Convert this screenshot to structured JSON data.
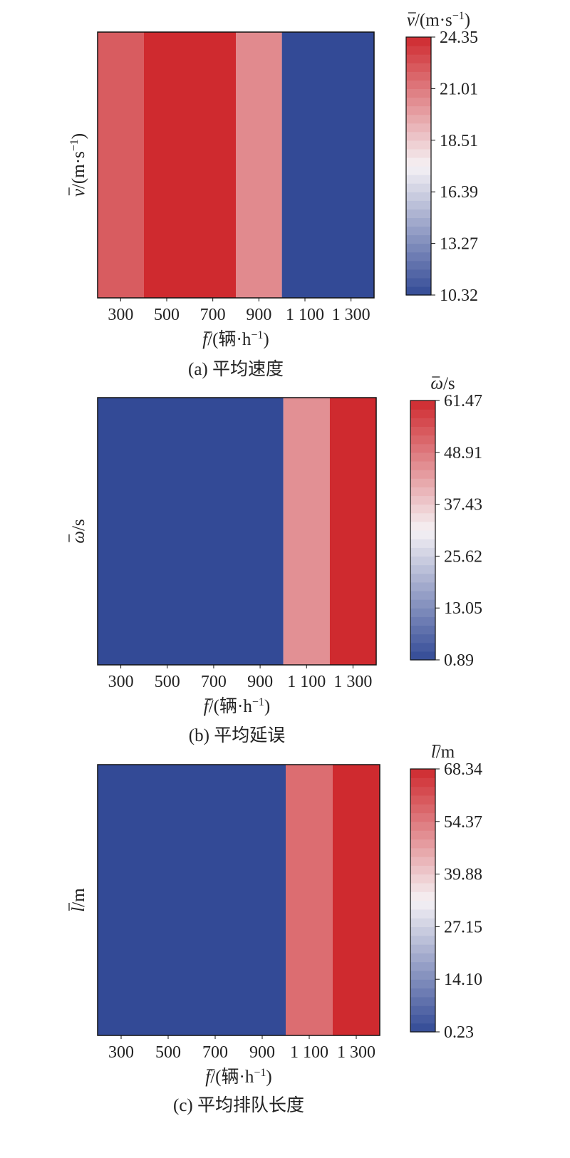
{
  "chart_data": [
    {
      "type": "heatmap",
      "panel_label": "(a) 平均速度",
      "xlabel": {
        "sym": "f",
        "unit": "/(辆·h",
        "exp": "−1",
        "close": ")"
      },
      "ylabel": {
        "sym": "v",
        "unit": "/(m·s",
        "exp": "−1",
        "close": ")"
      },
      "colorbar_title": {
        "sym": "v",
        "unit": "/(m·s",
        "exp": "−1",
        "close": ")"
      },
      "x_ticks": [
        "300",
        "500",
        "700",
        "900",
        "1 100",
        "1 300"
      ],
      "x_range": [
        200,
        1400
      ],
      "colorbar_ticks": [
        "24.35",
        "21.01",
        "18.51",
        "16.39",
        "13.27",
        "10.32"
      ],
      "value_range": [
        10.32,
        24.35
      ],
      "cells": [
        {
          "x_start": 200,
          "x_end": 400,
          "value": 22.6
        },
        {
          "x_start": 400,
          "x_end": 800,
          "value": 24.35
        },
        {
          "x_start": 800,
          "x_end": 1000,
          "value": 21.0
        },
        {
          "x_start": 1000,
          "x_end": 1400,
          "value": 10.32
        }
      ]
    },
    {
      "type": "heatmap",
      "panel_label": "(b) 平均延误",
      "xlabel": {
        "sym": "f",
        "unit": "/(辆·h",
        "exp": "−1",
        "close": ")"
      },
      "ylabel": {
        "sym": "ω",
        "unit": "/s",
        "exp": "",
        "close": ""
      },
      "colorbar_title": {
        "sym": "ω",
        "unit": "/s",
        "exp": "",
        "close": ""
      },
      "x_ticks": [
        "300",
        "500",
        "700",
        "900",
        "1 100",
        "1 300"
      ],
      "x_range": [
        200,
        1400
      ],
      "colorbar_ticks": [
        "61.47",
        "48.91",
        "37.43",
        "25.62",
        "13.05",
        "0.89"
      ],
      "value_range": [
        0.89,
        61.47
      ],
      "cells": [
        {
          "x_start": 200,
          "x_end": 1000,
          "value": 0.89
        },
        {
          "x_start": 1000,
          "x_end": 1200,
          "value": 46.0
        },
        {
          "x_start": 1200,
          "x_end": 1400,
          "value": 61.47
        }
      ]
    },
    {
      "type": "heatmap",
      "panel_label": "(c) 平均排队长度",
      "xlabel": {
        "sym": "f",
        "unit": "/(辆·h",
        "exp": "−1",
        "close": ")"
      },
      "ylabel": {
        "sym": "l",
        "unit": "/m",
        "exp": "",
        "close": ""
      },
      "colorbar_title": {
        "sym": "l",
        "unit": "/m",
        "exp": "",
        "close": ""
      },
      "x_ticks": [
        "300",
        "500",
        "700",
        "900",
        "1 100",
        "1 300"
      ],
      "x_range": [
        200,
        1400
      ],
      "colorbar_ticks": [
        "68.34",
        "54.37",
        "39.88",
        "27.15",
        "14.10",
        "0.23"
      ],
      "value_range": [
        0.23,
        68.34
      ],
      "cells": [
        {
          "x_start": 200,
          "x_end": 1000,
          "value": 0.23
        },
        {
          "x_start": 1000,
          "x_end": 1200,
          "value": 57.0
        },
        {
          "x_start": 1200,
          "x_end": 1400,
          "value": 68.34
        }
      ]
    }
  ],
  "colors": {
    "low": "#334a96",
    "mid": "#f5f2f5",
    "high": "#cf2a2f"
  }
}
